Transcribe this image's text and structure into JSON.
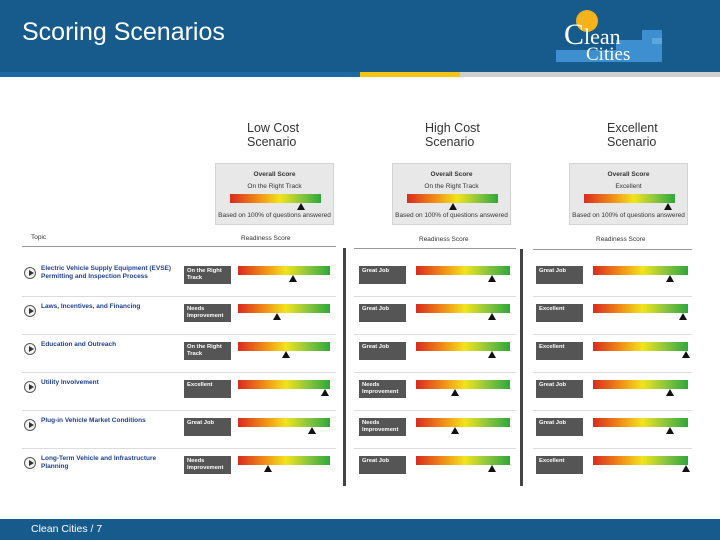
{
  "header": {
    "title": "Scoring Scenarios",
    "accent_colors": {
      "blue": "#1c6aa3",
      "yellow": "#f5c311",
      "light": "#cfcfcf"
    }
  },
  "logo": {
    "line1_big": "C",
    "line1_rest": "lean",
    "line2": "Cities"
  },
  "scenarios": [
    {
      "heading": "Low Cost Scenario",
      "overall": {
        "title": "Overall Score",
        "status": "On the Right Track",
        "basis": "Based on 100% of questions answered",
        "level": 0.78
      }
    },
    {
      "heading": "High Cost Scenario",
      "overall": {
        "title": "Overall Score",
        "status": "On the Right Track",
        "basis": "Based on 100% of questions answered",
        "level": 0.5
      }
    },
    {
      "heading": "Excellent Scenario",
      "overall": {
        "title": "Overall Score",
        "status": "Excellent",
        "basis": "Based on 100% of questions answered",
        "level": 0.92
      }
    }
  ],
  "table": {
    "topic_header": "Topic",
    "score_header": "Readiness Score",
    "topics": [
      "Electric Vehicle Supply Equipment (EVSE) Permitting and Inspection Process",
      "Laws, Incentives, and Financing",
      "Education and Outreach",
      "Utility Involvement",
      "Plug-in Vehicle Market Conditions",
      "Long-Term Vehicle and Infrastructure Planning"
    ],
    "results": [
      [
        {
          "label": "On the Right Track",
          "level": 0.6
        },
        {
          "label": "Needs Improvement",
          "level": 0.42
        },
        {
          "label": "On the Right Track",
          "level": 0.52
        },
        {
          "label": "Excellent",
          "level": 0.95
        },
        {
          "label": "Great Job",
          "level": 0.8
        },
        {
          "label": "Needs Improvement",
          "level": 0.33
        }
      ],
      [
        {
          "label": "Great Job",
          "level": 0.81
        },
        {
          "label": "Great Job",
          "level": 0.81
        },
        {
          "label": "Great Job",
          "level": 0.81
        },
        {
          "label": "Needs Improvement",
          "level": 0.42
        },
        {
          "label": "Needs Improvement",
          "level": 0.42
        },
        {
          "label": "Great Job",
          "level": 0.81
        }
      ],
      [
        {
          "label": "Great Job",
          "level": 0.81
        },
        {
          "label": "Excellent",
          "level": 0.95
        },
        {
          "label": "Excellent",
          "level": 0.98
        },
        {
          "label": "Great Job",
          "level": 0.81
        },
        {
          "label": "Great Job",
          "level": 0.81
        },
        {
          "label": "Excellent",
          "level": 0.98
        }
      ]
    ]
  },
  "footer": {
    "text": "Clean Cities  / 7"
  }
}
